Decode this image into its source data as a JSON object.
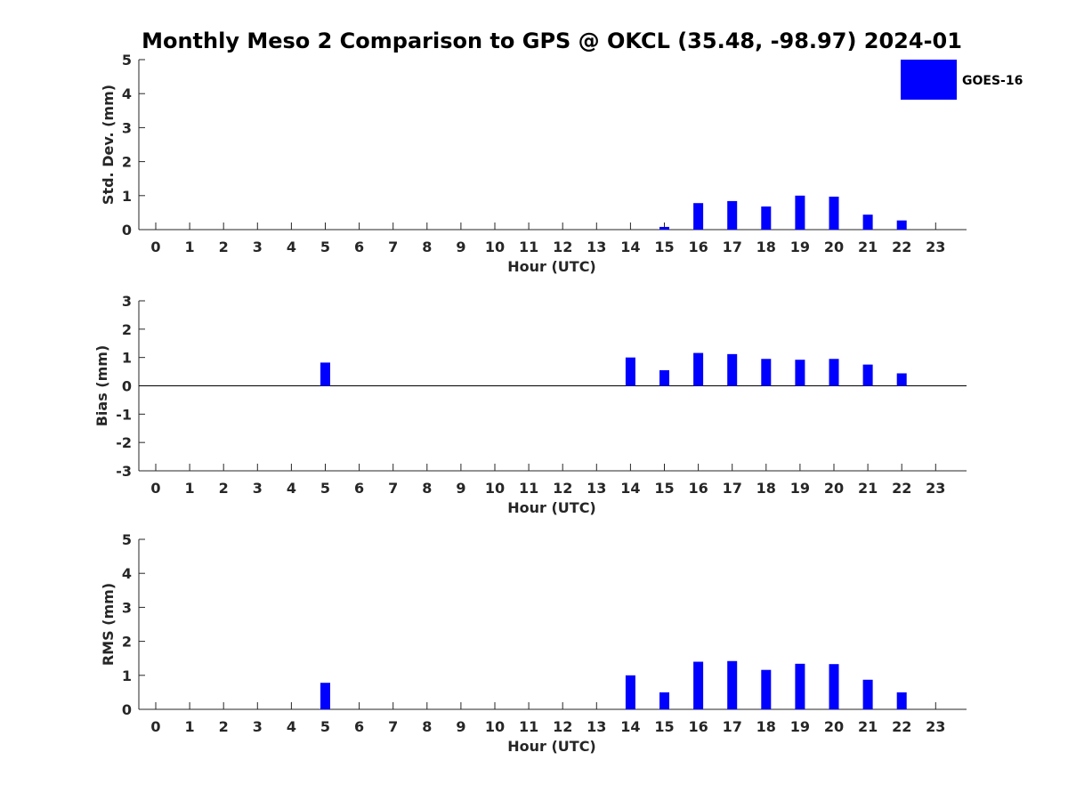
{
  "colors": {
    "bar": "#0000ff",
    "axis": "#262626",
    "text": "#262626"
  },
  "title": "Monthly Meso 2 Comparison to GPS @ OKCL (35.48, -98.97) 2024-01",
  "legend": {
    "label": "GOES-16",
    "color": "#0000ff",
    "position": "top-right"
  },
  "chart_data": [
    {
      "type": "bar",
      "x": [
        0,
        1,
        2,
        3,
        4,
        5,
        6,
        7,
        8,
        9,
        10,
        11,
        12,
        13,
        14,
        15,
        16,
        17,
        18,
        19,
        20,
        21,
        22,
        23
      ],
      "xlabel": "Hour (UTC)",
      "ylabel": "Std. Dev. (mm)",
      "ylim": [
        0,
        5
      ],
      "yticks": [
        0,
        1,
        2,
        3,
        4,
        5
      ],
      "series": [
        {
          "name": "GOES-16",
          "color": "#0000ff",
          "values": [
            0,
            0,
            0,
            0,
            0,
            0,
            0,
            0,
            0,
            0,
            0,
            0,
            0,
            0,
            0,
            0.08,
            0.78,
            0.84,
            0.68,
            1.0,
            0.97,
            0.44,
            0.27,
            0
          ]
        }
      ]
    },
    {
      "type": "bar",
      "x": [
        0,
        1,
        2,
        3,
        4,
        5,
        6,
        7,
        8,
        9,
        10,
        11,
        12,
        13,
        14,
        15,
        16,
        17,
        18,
        19,
        20,
        21,
        22,
        23
      ],
      "xlabel": "Hour (UTC)",
      "ylabel": "Bias (mm)",
      "ylim": [
        -3,
        3
      ],
      "yticks": [
        -3,
        -2,
        -1,
        0,
        1,
        2,
        3
      ],
      "zero_line": true,
      "series": [
        {
          "name": "GOES-16",
          "color": "#0000ff",
          "values": [
            0,
            0,
            0,
            0,
            0,
            0.82,
            0,
            0,
            0,
            0,
            0,
            0,
            0,
            0,
            1.0,
            0.55,
            1.16,
            1.12,
            0.95,
            0.92,
            0.95,
            0.75,
            0.44,
            0
          ]
        }
      ]
    },
    {
      "type": "bar",
      "x": [
        0,
        1,
        2,
        3,
        4,
        5,
        6,
        7,
        8,
        9,
        10,
        11,
        12,
        13,
        14,
        15,
        16,
        17,
        18,
        19,
        20,
        21,
        22,
        23
      ],
      "xlabel": "Hour (UTC)",
      "ylabel": "RMS (mm)",
      "ylim": [
        0,
        5
      ],
      "yticks": [
        0,
        1,
        2,
        3,
        4,
        5
      ],
      "series": [
        {
          "name": "GOES-16",
          "color": "#0000ff",
          "values": [
            0,
            0,
            0,
            0,
            0,
            0.78,
            0,
            0,
            0,
            0,
            0,
            0,
            0,
            0,
            1.0,
            0.5,
            1.4,
            1.42,
            1.16,
            1.34,
            1.33,
            0.87,
            0.5,
            0
          ]
        }
      ]
    }
  ]
}
